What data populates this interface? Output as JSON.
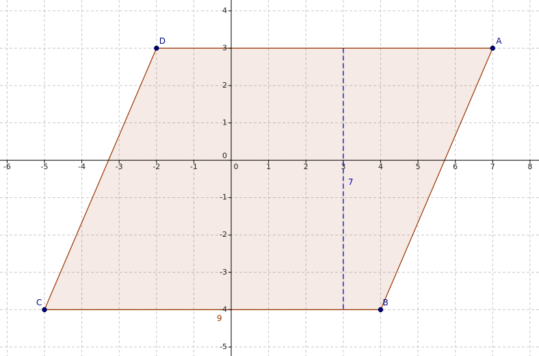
{
  "plot": {
    "xlim": [
      -6.19,
      8.24
    ],
    "ylim": [
      -5.24,
      4.29
    ],
    "xticks": [
      -6,
      -5,
      -4,
      -3,
      -2,
      -1,
      0,
      1,
      2,
      3,
      4,
      5,
      6,
      7,
      8
    ],
    "yticks": [
      -5,
      -4,
      -3,
      -2,
      -1,
      0,
      1,
      2,
      3,
      4
    ],
    "grid": true,
    "fill_color": "#993300",
    "point_color": "#00007f",
    "height_color": "#0000b0",
    "points": [
      {
        "label": "A",
        "x": 7,
        "y": 3
      },
      {
        "label": "B",
        "x": 4,
        "y": -4
      },
      {
        "label": "C",
        "x": -5,
        "y": -4
      },
      {
        "label": "D",
        "x": -2,
        "y": 3
      }
    ],
    "height": {
      "x": 3,
      "y_top": 3,
      "y_bottom": -4,
      "label": "7"
    },
    "base_label": "9"
  }
}
